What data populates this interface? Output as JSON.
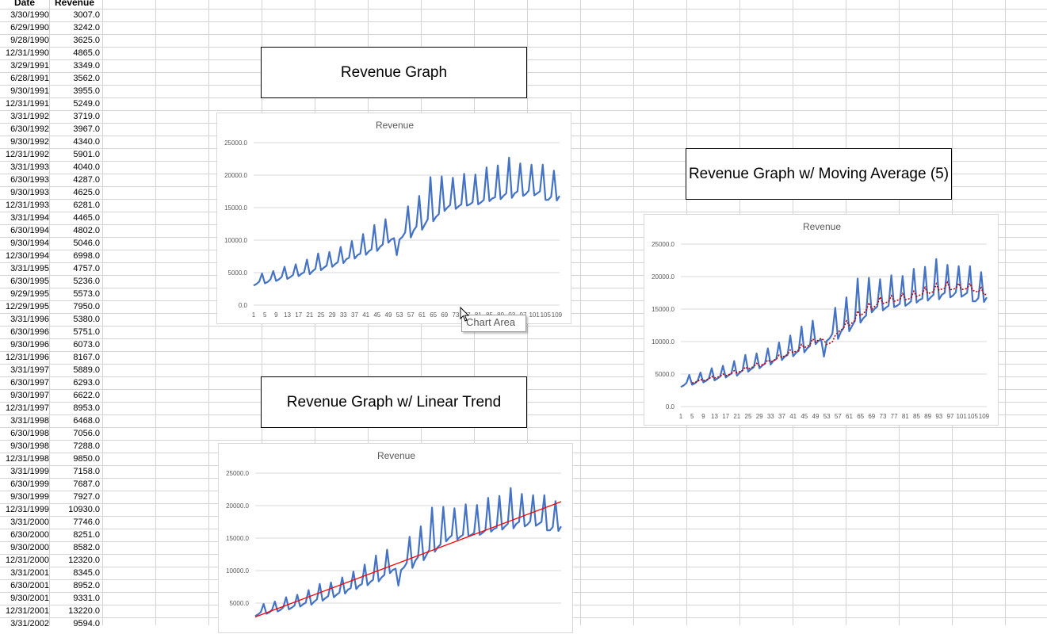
{
  "sheet": {
    "headers": {
      "date": "Date",
      "revenue": "Revenue"
    },
    "rows": [
      [
        "3/30/1990",
        "3007.0"
      ],
      [
        "6/29/1990",
        "3242.0"
      ],
      [
        "9/28/1990",
        "3625.0"
      ],
      [
        "12/31/1990",
        "4865.0"
      ],
      [
        "3/29/1991",
        "3349.0"
      ],
      [
        "6/28/1991",
        "3562.0"
      ],
      [
        "9/30/1991",
        "3955.0"
      ],
      [
        "12/31/1991",
        "5249.0"
      ],
      [
        "3/31/1992",
        "3719.0"
      ],
      [
        "6/30/1992",
        "3967.0"
      ],
      [
        "9/30/1992",
        "4340.0"
      ],
      [
        "12/31/1992",
        "5901.0"
      ],
      [
        "3/31/1993",
        "4040.0"
      ],
      [
        "6/30/1993",
        "4287.0"
      ],
      [
        "9/30/1993",
        "4625.0"
      ],
      [
        "12/31/1993",
        "6281.0"
      ],
      [
        "3/31/1994",
        "4465.0"
      ],
      [
        "6/30/1994",
        "4802.0"
      ],
      [
        "9/30/1994",
        "5046.0"
      ],
      [
        "12/30/1994",
        "6998.0"
      ],
      [
        "3/31/1995",
        "4757.0"
      ],
      [
        "6/30/1995",
        "5236.0"
      ],
      [
        "9/29/1995",
        "5573.0"
      ],
      [
        "12/29/1995",
        "7950.0"
      ],
      [
        "3/31/1996",
        "5380.0"
      ],
      [
        "6/30/1996",
        "5751.0"
      ],
      [
        "9/30/1996",
        "6073.0"
      ],
      [
        "12/31/1996",
        "8167.0"
      ],
      [
        "3/31/1997",
        "5889.0"
      ],
      [
        "6/30/1997",
        "6293.0"
      ],
      [
        "9/30/1997",
        "6622.0"
      ],
      [
        "12/31/1997",
        "8953.0"
      ],
      [
        "3/31/1998",
        "6468.0"
      ],
      [
        "6/30/1998",
        "7056.0"
      ],
      [
        "9/30/1998",
        "7288.0"
      ],
      [
        "12/31/1998",
        "9850.0"
      ],
      [
        "3/31/1999",
        "7158.0"
      ],
      [
        "6/30/1999",
        "7687.0"
      ],
      [
        "9/30/1999",
        "7927.0"
      ],
      [
        "12/31/1999",
        "10930.0"
      ],
      [
        "3/31/2000",
        "7746.0"
      ],
      [
        "6/30/2000",
        "8251.0"
      ],
      [
        "9/30/2000",
        "8582.0"
      ],
      [
        "12/31/2000",
        "12320.0"
      ],
      [
        "3/31/2001",
        "8345.0"
      ],
      [
        "6/30/2001",
        "8952.0"
      ],
      [
        "9/30/2001",
        "9331.0"
      ],
      [
        "12/31/2001",
        "13220.0"
      ],
      [
        "3/31/2002",
        "9594.0"
      ]
    ]
  },
  "titles": {
    "revenue_graph": "Revenue Graph",
    "linear_trend": "Revenue Graph w/ Linear Trend",
    "moving_average": "Revenue Graph w/ Moving Average (5)"
  },
  "tooltip": {
    "text": "Chart Area"
  },
  "colors": {
    "series": "#4472c4",
    "trend": "#ff0000",
    "moving_average": "#c00000",
    "gridline": "#d9d9d9"
  },
  "chart_data": [
    {
      "type": "line",
      "title": "Revenue",
      "ylim": [
        0,
        25000
      ],
      "yticks": [
        "0.0",
        "5000.0",
        "10000.0",
        "15000.0",
        "20000.0",
        "25000.0"
      ],
      "x": [
        1,
        2,
        3,
        4,
        5,
        6,
        7,
        8,
        9,
        10,
        11,
        12,
        13,
        14,
        15,
        16,
        17,
        18,
        19,
        20,
        21,
        22,
        23,
        24,
        25,
        26,
        27,
        28,
        29,
        30,
        31,
        32,
        33,
        34,
        35,
        36,
        37,
        38,
        39,
        40,
        41,
        42,
        43,
        44,
        45,
        46,
        47,
        48,
        49,
        50,
        51,
        52,
        53,
        54,
        55,
        56,
        57,
        58,
        59,
        60,
        61,
        62,
        63,
        64,
        65,
        66,
        67,
        68,
        69,
        70,
        71,
        72,
        73,
        74,
        75,
        76,
        77,
        78,
        79,
        80,
        81,
        82,
        83,
        84,
        85,
        86,
        87,
        88,
        89,
        90,
        91,
        92,
        93,
        94,
        95,
        96,
        97,
        98,
        99,
        100,
        101,
        102,
        103,
        104,
        105,
        106,
        107,
        108,
        109,
        110
      ],
      "xtick_labels": [
        "1",
        "5",
        "9",
        "13",
        "17",
        "21",
        "25",
        "29",
        "33",
        "37",
        "41",
        "45",
        "49",
        "53",
        "57",
        "61",
        "65",
        "69",
        "73",
        "77",
        "81",
        "85",
        "89",
        "93",
        "97",
        "101",
        "105",
        "109"
      ],
      "series": [
        {
          "values": [
            3007,
            3242,
            3625,
            4865,
            3349,
            3562,
            3955,
            5249,
            3719,
            3967,
            4340,
            5901,
            4040,
            4287,
            4625,
            6281,
            4465,
            4802,
            5046,
            6998,
            4757,
            5236,
            5573,
            7950,
            5380,
            5751,
            6073,
            8167,
            5889,
            6293,
            6622,
            8953,
            6468,
            7056,
            7288,
            9850,
            7158,
            7687,
            7927,
            10930,
            7746,
            8251,
            8582,
            12320,
            8345,
            8952,
            9331,
            13220,
            9594,
            10100,
            10300,
            7700,
            10100,
            10500,
            11200,
            15200,
            10400,
            11500,
            12100,
            16800,
            11600,
            12400,
            13200,
            19700,
            12900,
            13600,
            14000,
            19800,
            14500,
            15000,
            15400,
            19600,
            14800,
            15200,
            15500,
            20200,
            15300,
            15500,
            15800,
            20100,
            15500,
            15800,
            16200,
            21200,
            16000,
            16400,
            16600,
            21500,
            16300,
            16800,
            17200,
            22700,
            16500,
            17200,
            17500,
            21800,
            16800,
            17100,
            17600,
            21600,
            16900,
            17200,
            17500,
            21600,
            16200,
            16200,
            16700,
            20700,
            16100,
            16800
          ]
        }
      ]
    },
    {
      "type": "line",
      "title": "Revenue",
      "ylim": [
        0,
        25000
      ],
      "yticks": [
        "0.0",
        "5000.0",
        "10000.0",
        "15000.0",
        "20000.0",
        "25000.0"
      ],
      "xtick_labels": [
        "1",
        "5",
        "9",
        "13",
        "17",
        "21",
        "25",
        "29",
        "33",
        "37",
        "41",
        "45",
        "49",
        "53",
        "57",
        "61",
        "65",
        "69",
        "73",
        "77",
        "81",
        "85",
        "89",
        "93",
        "97",
        "101",
        "105",
        "109"
      ],
      "trend": "moving average (5)"
    },
    {
      "type": "line",
      "title": "Revenue",
      "ylim": [
        0,
        25000
      ],
      "yticks": [
        "0.0",
        "5000.0",
        "10000.0",
        "15000.0",
        "20000.0",
        "25000.0"
      ],
      "trend": "linear"
    }
  ]
}
